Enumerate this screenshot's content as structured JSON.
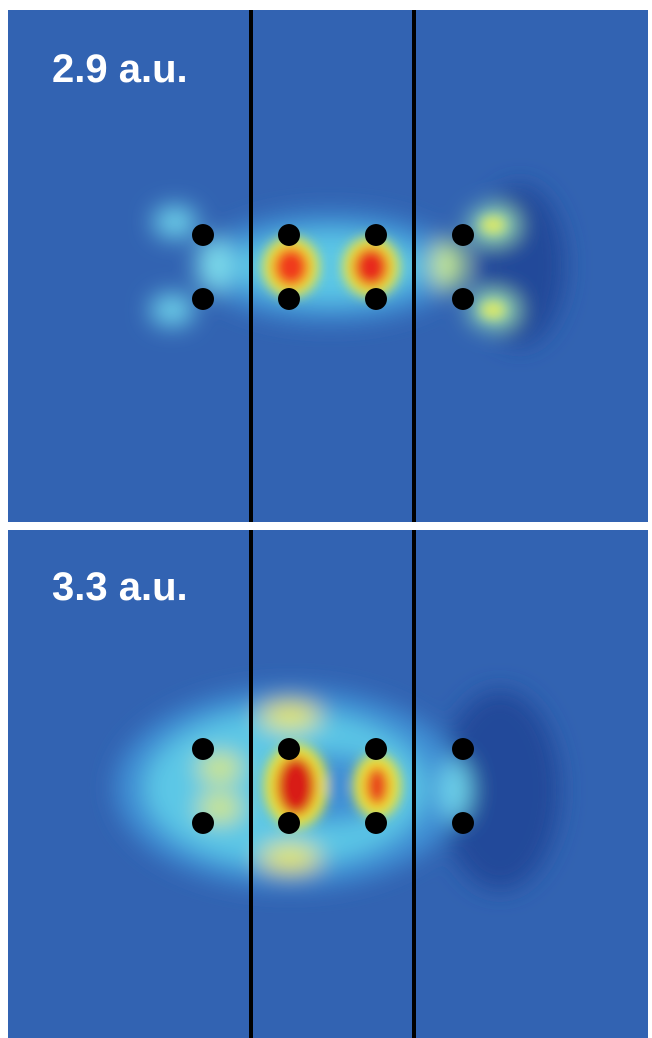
{
  "panels": [
    {
      "label": "2.9 a.u."
    },
    {
      "label": "3.3 a.u."
    }
  ]
}
